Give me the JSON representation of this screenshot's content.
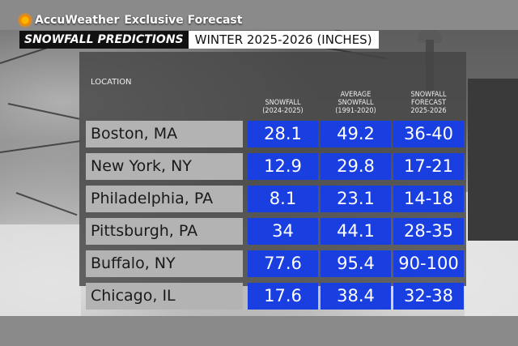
{
  "brand": {
    "name": "AccuWeather",
    "tagline": "Exclusive Forecast",
    "logo_icon": "sun-icon"
  },
  "header": {
    "left": "SNOWFALL PREDICTIONS",
    "right": "WINTER 2025-2026 (INCHES)"
  },
  "table": {
    "columns": {
      "location": "LOCATION",
      "snowfall": [
        "SNOWFALL",
        "(2024-2025)"
      ],
      "average": [
        "AVERAGE",
        "SNOWFALL",
        "(1991-2020)"
      ],
      "forecast": [
        "SNOWFALL",
        "FORECAST",
        "2025-2026"
      ]
    },
    "rows": [
      {
        "location": "Boston, MA",
        "snowfall": "28.1",
        "average": "49.2",
        "forecast": "36-40"
      },
      {
        "location": "New York, NY",
        "snowfall": "12.9",
        "average": "29.8",
        "forecast": "17-21"
      },
      {
        "location": "Philadelphia, PA",
        "snowfall": "8.1",
        "average": "23.1",
        "forecast": "14-18"
      },
      {
        "location": "Pittsburgh, PA",
        "snowfall": "34",
        "average": "44.1",
        "forecast": "28-35"
      },
      {
        "location": "Buffalo, NY",
        "snowfall": "77.6",
        "average": "95.4",
        "forecast": "90-100"
      },
      {
        "location": "Chicago, IL",
        "snowfall": "17.6",
        "average": "38.4",
        "forecast": "32-38"
      }
    ]
  },
  "colors": {
    "cell_blue": "#1a3fe0",
    "location_gray": "#b3b3b3",
    "panel": "#464646"
  }
}
